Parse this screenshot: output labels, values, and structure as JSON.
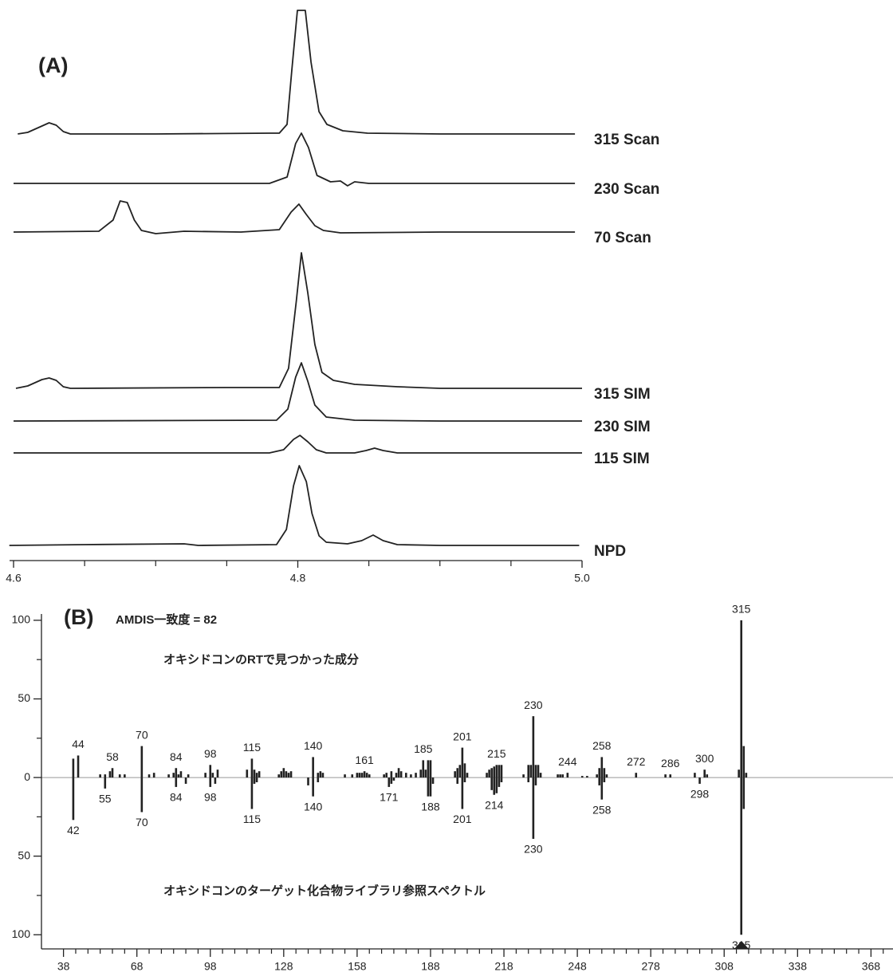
{
  "chart_data": [
    {
      "type": "line",
      "label": "(A)",
      "xlim": [
        4.6,
        5.0
      ],
      "xticks": [
        4.6,
        4.8,
        {
          "value": 5,
          "label": "5.0"
        }
      ],
      "xminor_ticks": [
        4.65,
        4.7,
        4.75,
        4.85,
        4.9,
        4.95
      ],
      "series": [
        {
          "name": "315 Scan",
          "color": "#222",
          "x": [
            4.603,
            4.61,
            4.62,
            4.625,
            4.63,
            4.635,
            4.64,
            4.7,
            4.78,
            4.787,
            4.7924,
            4.7958,
            4.7997,
            4.8053,
            4.8093,
            4.8149,
            4.8205,
            4.8317,
            4.849,
            4.9,
            4.995
          ],
          "values": [
            0,
            2,
            10,
            14,
            11,
            3,
            0,
            0,
            1,
            1,
            12,
            80,
            155,
            155,
            90,
            28,
            12,
            4,
            1,
            0,
            0
          ]
        },
        {
          "name": "230 Scan",
          "color": "#222",
          "x": [
            4.6,
            4.78,
            4.7925,
            4.7985,
            4.8025,
            4.8075,
            4.8135,
            4.823,
            4.83,
            4.835,
            4.84,
            4.85,
            4.995
          ],
          "values": [
            0,
            0,
            8,
            50,
            63,
            45,
            10,
            2,
            3,
            -3,
            2,
            0,
            0
          ]
        },
        {
          "name": "70 Scan",
          "color": "#222",
          "x": [
            4.6,
            4.66,
            4.67,
            4.675,
            4.68,
            4.685,
            4.69,
            4.7,
            4.72,
            4.76,
            4.787,
            4.7953,
            4.8008,
            4.806,
            4.812,
            4.818,
            4.83,
            4.9,
            4.995
          ],
          "values": [
            0,
            1,
            15,
            39,
            37,
            15,
            2,
            -2,
            1,
            0,
            3,
            25,
            35,
            22,
            8,
            2,
            -1,
            0,
            0
          ]
        },
        {
          "name": "315 SIM",
          "color": "#222",
          "x": [
            4.6017,
            4.61,
            4.62,
            4.625,
            4.63,
            4.635,
            4.64,
            4.75,
            4.787,
            4.7935,
            4.799,
            4.8025,
            4.807,
            4.812,
            4.817,
            4.825,
            4.84,
            4.87,
            4.9,
            5.0
          ],
          "values": [
            0,
            3,
            11,
            13,
            10,
            2,
            0,
            1,
            1,
            25,
            110,
            170,
            120,
            55,
            20,
            10,
            5,
            2,
            0,
            0
          ]
        },
        {
          "name": "230 SIM",
          "color": "#222",
          "x": [
            4.6,
            4.785,
            4.793,
            4.7985,
            4.8025,
            4.807,
            4.812,
            4.82,
            4.84,
            4.9,
            5.0
          ],
          "values": [
            0,
            1,
            15,
            55,
            73,
            50,
            20,
            5,
            1,
            0,
            0
          ]
        },
        {
          "name": "115 SIM",
          "color": "#222",
          "x": [
            4.6,
            4.78,
            4.79,
            4.797,
            4.8015,
            4.807,
            4.813,
            4.82,
            4.84,
            4.848,
            4.854,
            4.86,
            4.87,
            5.0
          ],
          "values": [
            0,
            0,
            4,
            17,
            22,
            14,
            4,
            0,
            0,
            3,
            6,
            3,
            0,
            0
          ]
        },
        {
          "name": "NPD",
          "color": "#222",
          "x": [
            4.597,
            4.65,
            4.72,
            4.73,
            4.785,
            4.792,
            4.797,
            4.801,
            4.806,
            4.81,
            4.815,
            4.82,
            4.835,
            4.845,
            4.853,
            4.86,
            4.87,
            4.9,
            4.998
          ],
          "values": [
            0,
            1,
            2,
            0,
            1,
            20,
            75,
            100,
            80,
            40,
            12,
            4,
            2,
            6,
            13,
            6,
            1,
            0,
            0
          ]
        }
      ]
    },
    {
      "type": "bar",
      "label": "(B)",
      "annotation": "AMDIS一致度 = 82",
      "xlim": [
        29,
        377
      ],
      "xticks": [
        38,
        68,
        98,
        128,
        158,
        188,
        218,
        248,
        278,
        308,
        338,
        368
      ],
      "xminor_ticks": [
        43,
        48,
        53,
        58,
        63,
        73,
        78,
        83,
        88,
        93,
        103,
        108,
        113,
        118,
        123,
        133,
        138,
        143,
        148,
        153,
        163,
        168,
        173,
        178,
        183,
        193,
        198,
        203,
        208,
        213,
        223,
        228,
        233,
        238,
        243,
        253,
        258,
        263,
        268,
        273,
        283,
        288,
        293,
        298,
        303,
        313,
        318,
        323,
        328,
        333,
        343,
        348,
        353,
        358,
        363,
        373
      ],
      "ylim": [
        -109,
        104
      ],
      "yticks": [
        {
          "value": -100,
          "label": "100"
        },
        {
          "value": -50,
          "label": "50"
        },
        0,
        50,
        100
      ],
      "yminor_ticks": [
        -75,
        -25,
        25,
        75
      ],
      "series": [
        {
          "name": "オキシドコンのRTで見つかった成分",
          "color": "#222",
          "x": [
            42,
            44,
            53,
            55,
            57,
            58,
            61,
            63,
            70,
            73,
            75,
            81,
            83,
            84,
            85,
            86,
            89,
            96,
            98,
            99,
            101,
            113,
            115,
            116,
            117,
            118,
            126,
            127,
            128,
            129,
            130,
            131,
            140,
            142,
            143,
            144,
            153,
            156,
            158,
            159,
            160,
            161,
            162,
            163,
            169,
            170,
            172,
            174,
            175,
            176,
            178,
            180,
            182,
            184,
            185,
            186,
            187,
            188,
            198,
            199,
            200,
            201,
            202,
            203,
            211,
            212,
            213,
            214,
            215,
            216,
            217,
            226,
            228,
            229,
            230,
            231,
            232,
            233,
            240,
            241,
            242,
            244,
            250,
            252,
            256,
            257,
            258,
            259,
            260,
            272,
            284,
            286,
            296,
            300,
            301,
            314,
            315,
            316,
            317
          ],
          "values": [
            12,
            14,
            2,
            2,
            4,
            6,
            2,
            2,
            20,
            2,
            3,
            2,
            3,
            6,
            2,
            4,
            2,
            3,
            8,
            3,
            5,
            5,
            12,
            5,
            3,
            4,
            2,
            4,
            6,
            4,
            3,
            4,
            13,
            3,
            4,
            3,
            2,
            2,
            3,
            3,
            3,
            4,
            3,
            2,
            2,
            3,
            4,
            3,
            6,
            4,
            3,
            2,
            3,
            5,
            11,
            5,
            11,
            11,
            4,
            6,
            8,
            19,
            9,
            3,
            3,
            5,
            6,
            7,
            8,
            8,
            8,
            2,
            8,
            8,
            39,
            8,
            8,
            3,
            2,
            2,
            2,
            3,
            1,
            1,
            2,
            6,
            13,
            6,
            2,
            3,
            2,
            2,
            3,
            5,
            2,
            5,
            100,
            20,
            3
          ],
          "peak_labels": [
            44,
            58,
            70,
            84,
            98,
            115,
            140,
            161,
            185,
            201,
            215,
            230,
            244,
            258,
            272,
            286,
            300,
            315
          ]
        },
        {
          "name": "オキシドコンのターゲット化合物ライブラリ参照スペクトル",
          "color": "#222",
          "x": [
            42,
            55,
            70,
            84,
            88,
            98,
            100,
            115,
            116,
            117,
            138,
            140,
            142,
            171,
            172,
            173,
            187,
            188,
            189,
            199,
            201,
            202,
            213,
            214,
            215,
            216,
            217,
            228,
            230,
            231,
            257,
            258,
            259,
            298,
            315,
            316
          ],
          "values": [
            -27,
            -7,
            -22,
            -6,
            -4,
            -6,
            -4,
            -20,
            -4,
            -3,
            -5,
            -12,
            -3,
            -6,
            -4,
            -2,
            -12,
            -12,
            -4,
            -4,
            -20,
            -3,
            -8,
            -11,
            -10,
            -6,
            -3,
            -3,
            -39,
            -5,
            -5,
            -14,
            -3,
            -4,
            -100,
            -20
          ],
          "peak_labels": [
            42,
            55,
            70,
            84,
            98,
            115,
            140,
            171,
            188,
            201,
            214,
            230,
            258,
            298,
            315
          ]
        }
      ]
    }
  ]
}
